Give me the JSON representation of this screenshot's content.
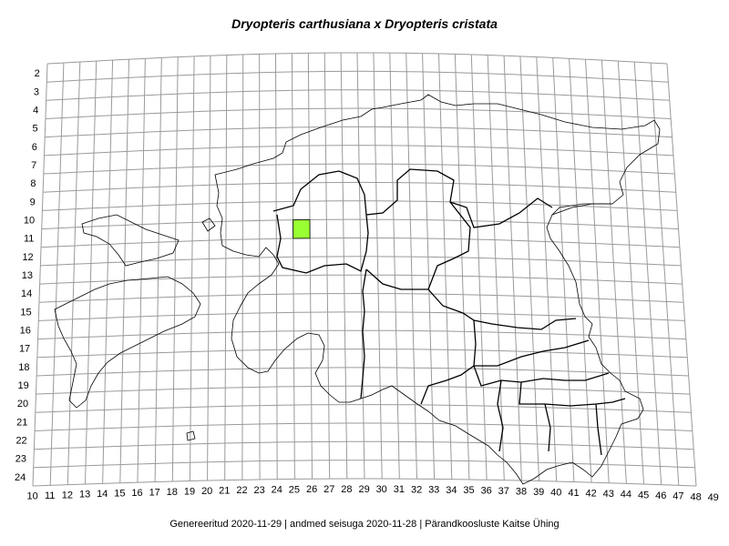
{
  "title": "Dryopteris carthusiana x Dryopteris cristata",
  "footer": "Genereeritud 2020-11-29  |  andmed seisuga 2020-11-28  |  Pärandkoosluste Kaitse Ühing",
  "grid": {
    "columns": [
      "10",
      "11",
      "12",
      "13",
      "14",
      "15",
      "16",
      "17",
      "18",
      "19",
      "20",
      "21",
      "22",
      "23",
      "24",
      "25",
      "26",
      "27",
      "28",
      "29",
      "30",
      "31",
      "32",
      "33",
      "34",
      "35",
      "36",
      "37",
      "38",
      "39",
      "40",
      "41",
      "42",
      "43",
      "44",
      "45",
      "46",
      "47",
      "48",
      "49"
    ],
    "rows": [
      "2",
      "3",
      "4",
      "5",
      "6",
      "7",
      "8",
      "9",
      "10",
      "11",
      "12",
      "13",
      "14",
      "15",
      "16",
      "17",
      "18",
      "19",
      "20",
      "21",
      "22",
      "23",
      "24"
    ]
  },
  "records": [
    {
      "column": "25",
      "row": "11",
      "color": "#99ff33"
    }
  ],
  "colors": {
    "grid": "#9a9a9a",
    "outline": "#000000",
    "record": "#99ff33"
  }
}
